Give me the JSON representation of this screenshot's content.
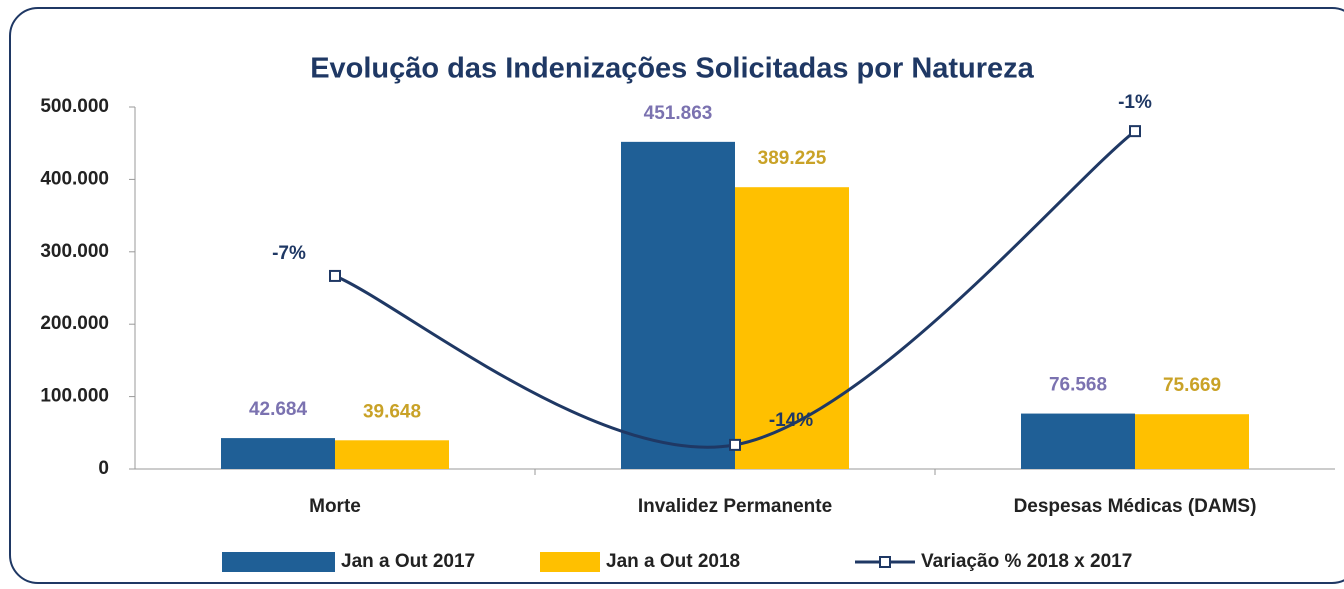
{
  "chart_data": {
    "type": "bar",
    "title": "Evolução das Indenizações Solicitadas por Natureza",
    "categories": [
      "Morte",
      "Invalidez Permanente",
      "Despesas Médicas (DAMS)"
    ],
    "series": [
      {
        "name": "Jan a Out 2017",
        "type": "bar",
        "color": "#1f5f96",
        "label_color": "#7b72b0",
        "values": [
          42684,
          451863,
          76568
        ],
        "value_labels": [
          "42.684",
          "451.863",
          "76.568"
        ]
      },
      {
        "name": "Jan a Out 2018",
        "type": "bar",
        "color": "#ffc000",
        "label_color": "#c9a227",
        "values": [
          39648,
          389225,
          75669
        ],
        "value_labels": [
          "39.648",
          "389.225",
          "75.669"
        ]
      },
      {
        "name": "Variação % 2018 x 2017",
        "type": "line",
        "axis": "y2",
        "color": "#1f3864",
        "label_color": "#1f3864",
        "values": [
          -7,
          -14,
          -1
        ],
        "value_labels": [
          "-7%",
          "-14%",
          "-1%"
        ]
      }
    ],
    "ylim": [
      0,
      500000
    ],
    "yticks": [
      0,
      {
        "value": 100000,
        "label": "100.000"
      },
      {
        "value": 200000,
        "label": "200.000"
      },
      {
        "value": 300000,
        "label": "300.000"
      },
      {
        "value": 400000,
        "label": "400.000"
      },
      {
        "value": 500000,
        "label": "500.000"
      }
    ],
    "y2lim": [
      -15,
      0
    ],
    "grid": false,
    "legend": "bottom"
  }
}
